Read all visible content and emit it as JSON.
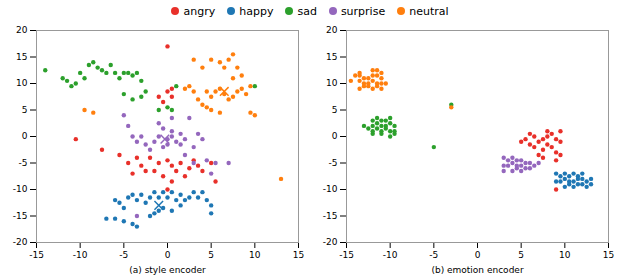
{
  "chart_data": [
    {
      "type": "scatter",
      "xlabel": "(a) style encoder",
      "legend": "top",
      "xlim": [
        -15,
        15
      ],
      "ylim": [
        -20,
        20
      ],
      "xticks": [
        -15,
        -10,
        -5,
        0,
        5,
        10,
        15
      ],
      "yticks": [
        -20,
        -15,
        -10,
        -5,
        0,
        5,
        10,
        15,
        20
      ],
      "series": [
        {
          "name": "angry",
          "color": "#e8302a",
          "x": [
            -10.5,
            -7.5,
            -5.5,
            -4.5,
            -4.0,
            -3.5,
            -3.0,
            -2.5,
            -2.0,
            -1.5,
            -1.0,
            -0.5,
            0.0,
            0.5,
            1.0,
            0.5,
            0.0,
            1.5,
            2.0,
            2.5,
            3.0,
            3.5,
            4.0,
            5.0,
            5.5,
            0.5,
            0.0,
            -0.5,
            0.5,
            -1.0,
            0.0
          ],
          "values": [
            -0.5,
            -2.5,
            -3.5,
            -5.0,
            -7.0,
            -4.0,
            -5.5,
            -6.5,
            -4.0,
            -6.5,
            -5.0,
            -7.5,
            -4.5,
            -5.5,
            -6.5,
            -8.5,
            -10.0,
            -5.0,
            -7.5,
            -6.0,
            -4.5,
            -5.5,
            -6.5,
            -5.0,
            -8.5,
            7.5,
            8.5,
            6.5,
            9.0,
            7.5,
            17.0
          ]
        },
        {
          "name": "happy",
          "color": "#1f77b4",
          "centroid": [
            -1.0,
            -13.0
          ],
          "x": [
            -6.0,
            -5.5,
            -5.0,
            -4.5,
            -4.0,
            -3.5,
            -3.0,
            -2.5,
            -2.0,
            -1.5,
            -1.0,
            -0.5,
            0.0,
            0.5,
            1.0,
            1.5,
            2.0,
            2.5,
            3.0,
            3.5,
            4.0,
            4.5,
            5.0,
            -4.0,
            -3.5,
            -5.0,
            -6.0,
            -7.0,
            -2.0,
            -1.5,
            -0.5,
            0.5,
            1.5,
            5.0,
            -1.0
          ],
          "values": [
            -12.0,
            -12.5,
            -13.5,
            -11.5,
            -11.0,
            -12.0,
            -11.0,
            -12.5,
            -11.5,
            -10.5,
            -11.5,
            -10.5,
            -11.5,
            -10.5,
            -12.0,
            -11.0,
            -12.0,
            -11.5,
            -10.5,
            -11.5,
            -10.5,
            -12.0,
            -13.0,
            -16.5,
            -17.0,
            -16.0,
            -15.5,
            -15.5,
            -15.0,
            -14.5,
            -13.5,
            -14.0,
            -13.0,
            -14.5,
            -14.0
          ]
        },
        {
          "name": "sad",
          "color": "#2ca02c",
          "x": [
            -14.0,
            -12.0,
            -11.0,
            -11.5,
            -10.5,
            -10.0,
            -9.5,
            -9.0,
            -8.5,
            -8.0,
            -7.5,
            -7.0,
            -6.5,
            -6.0,
            -5.5,
            -5.0,
            -4.5,
            -4.0,
            -3.5,
            -3.0,
            -5.0,
            -4.0,
            -3.0,
            -2.5,
            1.0,
            0.5,
            -1.0,
            0.0,
            10.0
          ],
          "values": [
            12.5,
            11.0,
            9.5,
            10.5,
            10.0,
            12.0,
            11.0,
            13.5,
            14.0,
            13.0,
            12.5,
            12.0,
            13.5,
            12.0,
            11.0,
            12.0,
            12.0,
            11.5,
            12.0,
            10.5,
            8.0,
            7.0,
            7.5,
            8.5,
            9.5,
            5.0,
            5.0,
            5.5,
            9.5
          ]
        },
        {
          "name": "surprise",
          "color": "#9467bd",
          "centroid": [
            -0.3,
            -0.5
          ],
          "x": [
            -5.0,
            -4.5,
            -4.0,
            -3.5,
            -3.0,
            -2.5,
            -2.0,
            -1.5,
            -1.0,
            -0.5,
            0.0,
            0.5,
            1.0,
            1.5,
            2.0,
            0.0,
            -0.5,
            0.5,
            1.5,
            -1.0,
            0.5,
            2.5,
            3.5,
            4.0,
            3.0,
            2.0,
            3.0,
            4.5,
            5.5,
            5.0,
            7.0,
            -3.5
          ],
          "values": [
            4.0,
            2.0,
            0.0,
            -1.0,
            0.0,
            -1.5,
            -2.5,
            -1.0,
            0.0,
            -2.0,
            -1.5,
            0.0,
            -1.0,
            -1.5,
            -0.5,
            -0.5,
            1.5,
            1.0,
            0.5,
            2.5,
            3.5,
            3.5,
            0.5,
            -0.5,
            -2.0,
            -3.5,
            -5.0,
            -4.5,
            -5.0,
            -7.0,
            -5.0,
            -15.0
          ]
        },
        {
          "name": "neutral",
          "color": "#ff7f0e",
          "centroid": [
            6.5,
            8.5
          ],
          "x": [
            -9.5,
            -8.5,
            3.0,
            4.0,
            5.0,
            6.0,
            6.5,
            7.0,
            7.5,
            8.0,
            7.5,
            8.5,
            6.5,
            6.0,
            5.5,
            5.0,
            4.5,
            4.0,
            3.5,
            3.0,
            2.5,
            2.0,
            7.0,
            7.5,
            8.0,
            8.5,
            9.0,
            9.5,
            9.5,
            6.0,
            5.0,
            4.5,
            10.0,
            13.0
          ],
          "values": [
            5.0,
            4.5,
            14.5,
            13.0,
            14.5,
            14.0,
            13.0,
            14.5,
            15.5,
            13.0,
            11.0,
            11.5,
            8.0,
            9.0,
            8.5,
            7.5,
            8.5,
            6.0,
            7.0,
            8.5,
            9.5,
            9.0,
            7.0,
            7.5,
            8.5,
            9.0,
            8.0,
            9.5,
            4.5,
            4.5,
            5.0,
            5.5,
            4.0,
            -8.0
          ]
        }
      ]
    },
    {
      "type": "scatter",
      "xlabel": "(b) emotion encoder",
      "xlim": [
        -15,
        15
      ],
      "ylim": [
        -20,
        20
      ],
      "xticks": [
        -15,
        -10,
        -5,
        0,
        5,
        10,
        15
      ],
      "yticks": [
        -20,
        -15,
        -10,
        -5,
        0,
        5,
        10,
        15,
        20
      ],
      "series": [
        {
          "name": "angry",
          "color": "#e8302a",
          "x": [
            5.0,
            5.5,
            6.0,
            6.5,
            7.0,
            7.5,
            7.5,
            8.0,
            8.5,
            8.5,
            9.0,
            9.5,
            9.0,
            7.0,
            6.5,
            8.0,
            6.0,
            7.5,
            9.0,
            9.5,
            9.5,
            8.0,
            9.0
          ],
          "values": [
            -1.0,
            -0.5,
            -1.5,
            -2.0,
            -1.0,
            -2.5,
            -0.5,
            -1.5,
            -2.0,
            0.5,
            -0.5,
            -1.0,
            -3.0,
            -3.5,
            0.0,
            0.0,
            0.5,
            -4.0,
            -4.5,
            -3.5,
            1.0,
            1.0,
            -10.0
          ]
        },
        {
          "name": "happy",
          "color": "#1f77b4",
          "x": [
            9.0,
            9.5,
            10.0,
            10.5,
            11.0,
            11.5,
            11.5,
            12.0,
            12.5,
            12.0,
            11.0,
            10.5,
            10.0,
            9.5,
            9.0,
            11.5,
            12.0,
            12.5,
            11.0,
            10.5,
            10.0,
            13.0,
            13.0
          ],
          "values": [
            -7.0,
            -7.5,
            -7.0,
            -7.5,
            -7.0,
            -7.5,
            -8.0,
            -8.0,
            -8.5,
            -7.0,
            -8.5,
            -8.5,
            -8.0,
            -8.5,
            -8.5,
            -9.0,
            -9.0,
            -9.5,
            -9.5,
            -9.0,
            -9.5,
            -8.0,
            -9.0
          ]
        },
        {
          "name": "sad",
          "color": "#2ca02c",
          "x": [
            -12.0,
            -11.5,
            -11.0,
            -11.5,
            -11.0,
            -10.5,
            -10.5,
            -10.0,
            -10.0,
            -11.0,
            -11.5,
            -10.5,
            -10.0,
            -11.0,
            -12.0,
            -12.0,
            -12.5,
            -12.0,
            -13.0,
            -9.5,
            -9.5,
            -9.5,
            -10.0,
            -5.0,
            -3.0
          ],
          "values": [
            2.0,
            2.5,
            2.0,
            1.5,
            1.0,
            2.0,
            1.5,
            2.5,
            1.0,
            3.0,
            3.5,
            3.0,
            3.5,
            0.5,
            0.5,
            1.0,
            1.5,
            3.0,
            2.0,
            2.0,
            0.5,
            1.0,
            0.0,
            -2.0,
            6.0
          ]
        },
        {
          "name": "surprise",
          "color": "#9467bd",
          "x": [
            3.0,
            3.5,
            4.0,
            4.5,
            5.0,
            5.5,
            5.0,
            4.5,
            4.0,
            3.5,
            3.0,
            4.5,
            5.0,
            5.5,
            3.0,
            4.0,
            6.0,
            6.5,
            7.0,
            6.0
          ],
          "values": [
            -4.0,
            -4.5,
            -4.0,
            -4.5,
            -4.5,
            -5.0,
            -5.5,
            -5.5,
            -5.0,
            -5.5,
            -5.5,
            -6.0,
            -6.5,
            -6.0,
            -6.5,
            -6.5,
            -5.0,
            -5.5,
            -5.0,
            -6.0
          ]
        },
        {
          "name": "neutral",
          "color": "#ff7f0e",
          "x": [
            -13.5,
            -13.0,
            -12.5,
            -12.0,
            -12.5,
            -12.0,
            -11.5,
            -11.0,
            -11.5,
            -11.0,
            -12.0,
            -11.5,
            -13.0,
            -12.5,
            -11.5,
            -11.0,
            -12.0,
            -13.0,
            -13.5,
            -13.5,
            -10.5,
            -11.0,
            -13.5,
            -14.5,
            -14.0,
            -3.0
          ],
          "values": [
            10.5,
            11.0,
            11.0,
            11.5,
            10.0,
            10.5,
            11.5,
            11.0,
            10.0,
            10.0,
            12.5,
            12.5,
            9.5,
            9.5,
            9.5,
            9.0,
            9.0,
            10.0,
            11.5,
            9.0,
            10.0,
            12.0,
            12.0,
            10.5,
            11.5,
            5.5
          ]
        }
      ]
    }
  ]
}
